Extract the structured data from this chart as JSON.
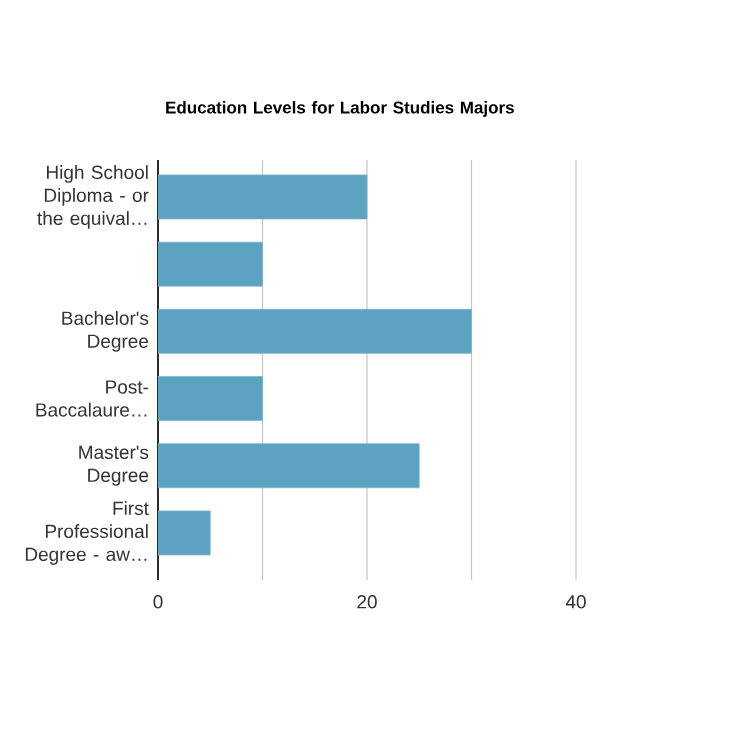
{
  "chart_data": {
    "type": "bar",
    "orientation": "horizontal",
    "title": "Education Levels for Labor Studies Majors",
    "categories": [
      "High School Diploma - or the equival…",
      null,
      "Bachelor's Degree",
      "Post-Baccalaure…",
      "Master's Degree",
      "First Professional Degree - aw…"
    ],
    "values": [
      20,
      10,
      30,
      10,
      25,
      5
    ],
    "color": "#5ba3c0",
    "xlim": [
      0,
      40
    ],
    "xticks": [
      0,
      {
        "value": 10,
        "label": null
      },
      20,
      {
        "value": 30,
        "label": null
      },
      40
    ],
    "grid": "x"
  }
}
